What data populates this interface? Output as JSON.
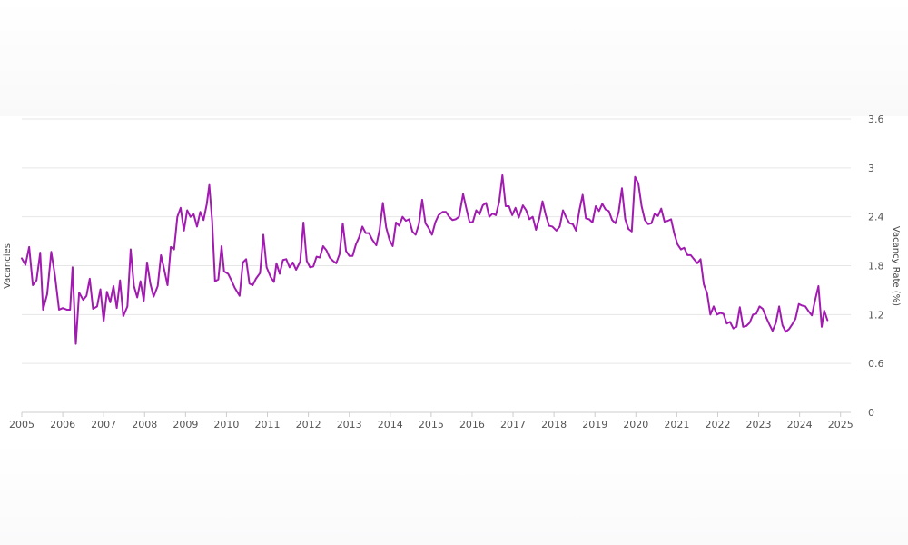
{
  "chart_data": {
    "type": "line",
    "title": "",
    "ylabel_left": "Vacancies",
    "ylabel_right": "Vacancy Rate (%)",
    "ylim": [
      0,
      3.6
    ],
    "yticks": [
      "0",
      "0.6",
      "1.2",
      "1.8",
      "2.4",
      "3",
      "3.6"
    ],
    "xlim": [
      2005,
      2025.25
    ],
    "xticks": [
      "2005",
      "2006",
      "2007",
      "2008",
      "2009",
      "2010",
      "2011",
      "2012",
      "2013",
      "2014",
      "2015",
      "2016",
      "2017",
      "2018",
      "2019",
      "2020",
      "2021",
      "2022",
      "2023",
      "2024",
      "2025"
    ],
    "grid": true,
    "line_color": "#a11bb0",
    "series": [
      {
        "name": "",
        "points": [
          [
            2005.0,
            1.89
          ],
          [
            2005.09,
            1.81
          ],
          [
            2005.18,
            2.03
          ],
          [
            2005.27,
            1.56
          ],
          [
            2005.36,
            1.62
          ],
          [
            2005.45,
            1.96
          ],
          [
            2005.52,
            1.26
          ],
          [
            2005.62,
            1.45
          ],
          [
            2005.72,
            1.97
          ],
          [
            2005.81,
            1.68
          ],
          [
            2005.91,
            1.26
          ],
          [
            2006.0,
            1.28
          ],
          [
            2006.1,
            1.26
          ],
          [
            2006.18,
            1.26
          ],
          [
            2006.24,
            1.78
          ],
          [
            2006.32,
            0.84
          ],
          [
            2006.4,
            1.47
          ],
          [
            2006.5,
            1.38
          ],
          [
            2006.58,
            1.43
          ],
          [
            2006.66,
            1.64
          ],
          [
            2006.74,
            1.27
          ],
          [
            2006.84,
            1.3
          ],
          [
            2006.92,
            1.51
          ],
          [
            2007.0,
            1.12
          ],
          [
            2007.08,
            1.48
          ],
          [
            2007.16,
            1.35
          ],
          [
            2007.24,
            1.55
          ],
          [
            2007.32,
            1.28
          ],
          [
            2007.4,
            1.62
          ],
          [
            2007.48,
            1.18
          ],
          [
            2007.58,
            1.3
          ],
          [
            2007.66,
            2.0
          ],
          [
            2007.74,
            1.55
          ],
          [
            2007.82,
            1.41
          ],
          [
            2007.9,
            1.61
          ],
          [
            2007.98,
            1.37
          ],
          [
            2008.06,
            1.84
          ],
          [
            2008.14,
            1.58
          ],
          [
            2008.22,
            1.42
          ],
          [
            2008.32,
            1.55
          ],
          [
            2008.4,
            1.93
          ],
          [
            2008.48,
            1.75
          ],
          [
            2008.56,
            1.56
          ],
          [
            2008.64,
            2.03
          ],
          [
            2008.72,
            2.0
          ],
          [
            2008.8,
            2.4
          ],
          [
            2008.88,
            2.51
          ],
          [
            2008.96,
            2.23
          ],
          [
            2009.04,
            2.48
          ],
          [
            2009.12,
            2.4
          ],
          [
            2009.2,
            2.43
          ],
          [
            2009.28,
            2.28
          ],
          [
            2009.36,
            2.46
          ],
          [
            2009.44,
            2.36
          ],
          [
            2009.52,
            2.56
          ],
          [
            2009.58,
            2.79
          ],
          [
            2009.65,
            2.35
          ],
          [
            2009.72,
            1.61
          ],
          [
            2009.8,
            1.63
          ],
          [
            2009.88,
            2.04
          ],
          [
            2009.94,
            1.73
          ],
          [
            2010.04,
            1.7
          ],
          [
            2010.12,
            1.62
          ],
          [
            2010.2,
            1.53
          ],
          [
            2010.32,
            1.43
          ],
          [
            2010.4,
            1.84
          ],
          [
            2010.48,
            1.88
          ],
          [
            2010.56,
            1.58
          ],
          [
            2010.64,
            1.56
          ],
          [
            2010.72,
            1.64
          ],
          [
            2010.82,
            1.71
          ],
          [
            2010.9,
            2.18
          ],
          [
            2010.98,
            1.78
          ],
          [
            2011.08,
            1.66
          ],
          [
            2011.16,
            1.6
          ],
          [
            2011.22,
            1.83
          ],
          [
            2011.3,
            1.7
          ],
          [
            2011.38,
            1.87
          ],
          [
            2011.46,
            1.88
          ],
          [
            2011.54,
            1.78
          ],
          [
            2011.62,
            1.84
          ],
          [
            2011.7,
            1.75
          ],
          [
            2011.8,
            1.85
          ],
          [
            2011.88,
            2.33
          ],
          [
            2011.96,
            1.86
          ],
          [
            2012.04,
            1.78
          ],
          [
            2012.12,
            1.79
          ],
          [
            2012.2,
            1.91
          ],
          [
            2012.28,
            1.9
          ],
          [
            2012.36,
            2.04
          ],
          [
            2012.44,
            1.99
          ],
          [
            2012.52,
            1.9
          ],
          [
            2012.6,
            1.86
          ],
          [
            2012.68,
            1.83
          ],
          [
            2012.76,
            1.94
          ],
          [
            2012.84,
            2.32
          ],
          [
            2012.92,
            1.98
          ],
          [
            2013.0,
            1.92
          ],
          [
            2013.08,
            1.92
          ],
          [
            2013.16,
            2.06
          ],
          [
            2013.24,
            2.15
          ],
          [
            2013.32,
            2.28
          ],
          [
            2013.4,
            2.2
          ],
          [
            2013.48,
            2.2
          ],
          [
            2013.56,
            2.12
          ],
          [
            2013.66,
            2.05
          ],
          [
            2013.74,
            2.24
          ],
          [
            2013.82,
            2.57
          ],
          [
            2013.9,
            2.27
          ],
          [
            2013.98,
            2.12
          ],
          [
            2014.06,
            2.04
          ],
          [
            2014.14,
            2.33
          ],
          [
            2014.22,
            2.29
          ],
          [
            2014.3,
            2.4
          ],
          [
            2014.38,
            2.35
          ],
          [
            2014.46,
            2.37
          ],
          [
            2014.54,
            2.22
          ],
          [
            2014.62,
            2.18
          ],
          [
            2014.7,
            2.31
          ],
          [
            2014.78,
            2.61
          ],
          [
            2014.86,
            2.32
          ],
          [
            2014.94,
            2.26
          ],
          [
            2015.02,
            2.18
          ],
          [
            2015.1,
            2.33
          ],
          [
            2015.18,
            2.42
          ],
          [
            2015.28,
            2.46
          ],
          [
            2015.36,
            2.46
          ],
          [
            2015.44,
            2.4
          ],
          [
            2015.52,
            2.36
          ],
          [
            2015.6,
            2.37
          ],
          [
            2015.68,
            2.4
          ],
          [
            2015.78,
            2.68
          ],
          [
            2015.86,
            2.5
          ],
          [
            2015.94,
            2.33
          ],
          [
            2016.02,
            2.34
          ],
          [
            2016.1,
            2.48
          ],
          [
            2016.18,
            2.43
          ],
          [
            2016.26,
            2.54
          ],
          [
            2016.34,
            2.57
          ],
          [
            2016.42,
            2.4
          ],
          [
            2016.5,
            2.44
          ],
          [
            2016.58,
            2.42
          ],
          [
            2016.66,
            2.58
          ],
          [
            2016.74,
            2.91
          ],
          [
            2016.82,
            2.53
          ],
          [
            2016.9,
            2.53
          ],
          [
            2016.98,
            2.42
          ],
          [
            2017.06,
            2.51
          ],
          [
            2017.14,
            2.39
          ],
          [
            2017.24,
            2.54
          ],
          [
            2017.32,
            2.48
          ],
          [
            2017.4,
            2.37
          ],
          [
            2017.48,
            2.4
          ],
          [
            2017.56,
            2.24
          ],
          [
            2017.64,
            2.38
          ],
          [
            2017.72,
            2.59
          ],
          [
            2017.8,
            2.42
          ],
          [
            2017.88,
            2.29
          ],
          [
            2017.96,
            2.28
          ],
          [
            2018.06,
            2.23
          ],
          [
            2018.14,
            2.28
          ],
          [
            2018.22,
            2.48
          ],
          [
            2018.3,
            2.39
          ],
          [
            2018.38,
            2.32
          ],
          [
            2018.46,
            2.31
          ],
          [
            2018.54,
            2.23
          ],
          [
            2018.62,
            2.48
          ],
          [
            2018.7,
            2.67
          ],
          [
            2018.78,
            2.38
          ],
          [
            2018.86,
            2.37
          ],
          [
            2018.94,
            2.33
          ],
          [
            2019.02,
            2.53
          ],
          [
            2019.1,
            2.47
          ],
          [
            2019.18,
            2.56
          ],
          [
            2019.26,
            2.49
          ],
          [
            2019.34,
            2.47
          ],
          [
            2019.42,
            2.36
          ],
          [
            2019.5,
            2.32
          ],
          [
            2019.58,
            2.46
          ],
          [
            2019.66,
            2.75
          ],
          [
            2019.74,
            2.37
          ],
          [
            2019.82,
            2.25
          ],
          [
            2019.9,
            2.22
          ],
          [
            2019.98,
            2.89
          ],
          [
            2020.06,
            2.81
          ],
          [
            2020.14,
            2.53
          ],
          [
            2020.22,
            2.36
          ],
          [
            2020.3,
            2.31
          ],
          [
            2020.38,
            2.32
          ],
          [
            2020.46,
            2.44
          ],
          [
            2020.54,
            2.41
          ],
          [
            2020.62,
            2.5
          ],
          [
            2020.7,
            2.34
          ],
          [
            2020.78,
            2.35
          ],
          [
            2020.86,
            2.37
          ],
          [
            2020.94,
            2.19
          ],
          [
            2021.02,
            2.06
          ],
          [
            2021.1,
            2.0
          ],
          [
            2021.18,
            2.02
          ],
          [
            2021.26,
            1.93
          ],
          [
            2021.34,
            1.93
          ],
          [
            2021.42,
            1.88
          ],
          [
            2021.5,
            1.83
          ],
          [
            2021.58,
            1.88
          ],
          [
            2021.66,
            1.57
          ],
          [
            2021.74,
            1.46
          ],
          [
            2021.82,
            1.2
          ],
          [
            2021.9,
            1.3
          ],
          [
            2021.98,
            1.2
          ],
          [
            2022.06,
            1.22
          ],
          [
            2022.14,
            1.21
          ],
          [
            2022.22,
            1.09
          ],
          [
            2022.3,
            1.11
          ],
          [
            2022.38,
            1.03
          ],
          [
            2022.46,
            1.05
          ],
          [
            2022.54,
            1.29
          ],
          [
            2022.62,
            1.05
          ],
          [
            2022.7,
            1.06
          ],
          [
            2022.78,
            1.1
          ],
          [
            2022.86,
            1.2
          ],
          [
            2022.94,
            1.21
          ],
          [
            2023.02,
            1.3
          ],
          [
            2023.1,
            1.27
          ],
          [
            2023.18,
            1.17
          ],
          [
            2023.26,
            1.08
          ],
          [
            2023.34,
            1.0
          ],
          [
            2023.42,
            1.1
          ],
          [
            2023.5,
            1.3
          ],
          [
            2023.58,
            1.07
          ],
          [
            2023.66,
            0.99
          ],
          [
            2023.74,
            1.02
          ],
          [
            2023.82,
            1.08
          ],
          [
            2023.9,
            1.15
          ],
          [
            2023.98,
            1.33
          ],
          [
            2024.06,
            1.31
          ],
          [
            2024.14,
            1.3
          ],
          [
            2024.22,
            1.24
          ],
          [
            2024.3,
            1.19
          ],
          [
            2024.38,
            1.38
          ],
          [
            2024.46,
            1.55
          ],
          [
            2024.54,
            1.05
          ],
          [
            2024.6,
            1.25
          ],
          [
            2024.68,
            1.13
          ]
        ]
      }
    ]
  }
}
